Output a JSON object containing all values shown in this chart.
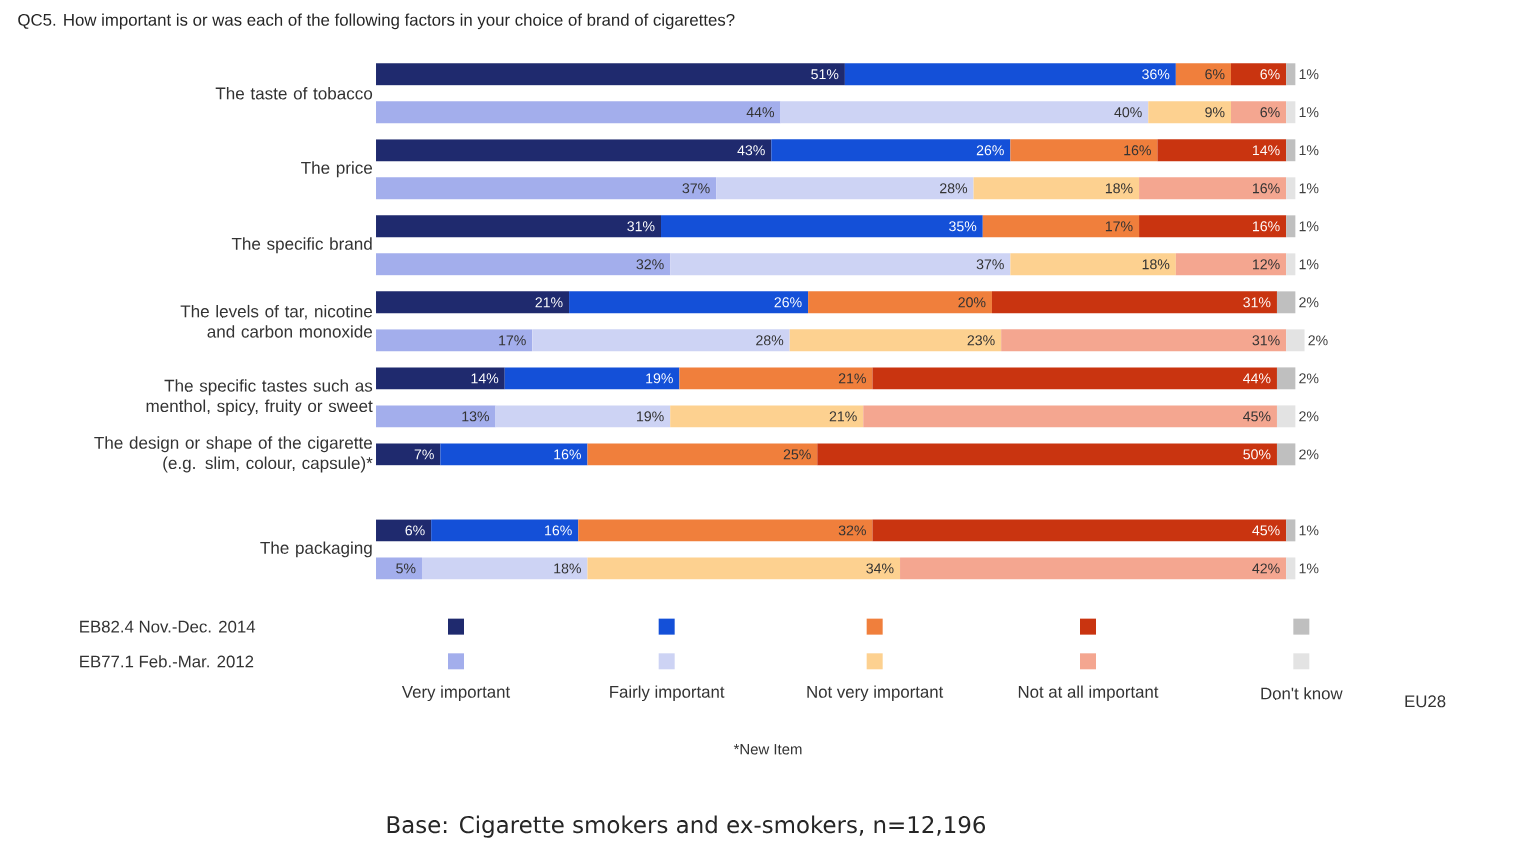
{
  "chart_data": {
    "type": "bar",
    "orientation": "horizontal",
    "stacked": true,
    "legend": "bottom",
    "title": "QC5. How important is or was each of the following factors in your choice of brand of cigarettes?",
    "categories": [
      "The taste of tobacco",
      null,
      "The price",
      null,
      "The specific brand",
      null,
      "The levels of tar, nicotine and carbon monoxide",
      null,
      "The specific tastes such as menthol, spicy, fruity or sweet",
      null,
      "The design or shape of the cigarette (e.g. slim, colour, capsule)*",
      null,
      "The packaging",
      null
    ],
    "series": [
      {
        "name": "Very important",
        "colors": [
          "#1f2a6e",
          "#a3aeec",
          "#1f2a6e",
          "#a3aeec",
          "#1f2a6e",
          "#a3aeec",
          "#1f2a6e",
          "#a3aeec",
          "#1f2a6e",
          "#a3aeec",
          "#1f2a6e",
          "#a3aeec",
          "#1f2a6e",
          "#a3aeec"
        ],
        "values": [
          51,
          44,
          43,
          37,
          31,
          32,
          21,
          17,
          14,
          13,
          7,
          null,
          6,
          5
        ],
        "value_labels": [
          "51%",
          "44%",
          "43%",
          "37%",
          "31%",
          "32%",
          "21%",
          "17%",
          "14%",
          "13%",
          "7%",
          null,
          "6%",
          "5%"
        ]
      },
      {
        "name": "Fairly important",
        "colors": [
          "#1450d8",
          "#cdd3f4",
          "#1450d8",
          "#cdd3f4",
          "#1450d8",
          "#cdd3f4",
          "#1450d8",
          "#cdd3f4",
          "#1450d8",
          "#cdd3f4",
          "#1450d8",
          "#cdd3f4",
          "#1450d8",
          "#cdd3f4"
        ],
        "values": [
          36,
          40,
          26,
          28,
          35,
          37,
          26,
          28,
          19,
          19,
          16,
          null,
          16,
          18
        ],
        "value_labels": [
          "36%",
          "40%",
          "26%",
          "28%",
          "35%",
          "37%",
          "26%",
          "28%",
          "19%",
          "19%",
          "16%",
          null,
          "16%",
          "18%"
        ]
      },
      {
        "name": "Not very important",
        "colors": [
          "#f07f3c",
          "#fdd190",
          "#f07f3c",
          "#fdd190",
          "#f07f3c",
          "#fdd190",
          "#f07f3c",
          "#fdd190",
          "#f07f3c",
          "#fdd190",
          "#f07f3c",
          "#fdd190",
          "#f07f3c",
          "#fdd190"
        ],
        "values": [
          6,
          9,
          16,
          18,
          17,
          18,
          20,
          23,
          21,
          21,
          25,
          null,
          32,
          34
        ],
        "value_labels": [
          "6%",
          "9%",
          "16%",
          "18%",
          "17%",
          "18%",
          "20%",
          "23%",
          "21%",
          "21%",
          "25%",
          null,
          "32%",
          "34%"
        ]
      },
      {
        "name": "Not at all important",
        "colors": [
          "#c93410",
          "#f4a690",
          "#c93410",
          "#f4a690",
          "#c93410",
          "#f4a690",
          "#c93410",
          "#f4a690",
          "#c93410",
          "#f4a690",
          "#c93410",
          "#f4a690",
          "#c93410",
          "#f4a690"
        ],
        "values": [
          6,
          6,
          14,
          16,
          16,
          12,
          31,
          31,
          44,
          45,
          50,
          null,
          45,
          42
        ],
        "value_labels": [
          "6%",
          "6%",
          "14%",
          "16%",
          "16%",
          "12%",
          "31%",
          "31%",
          "44%",
          "45%",
          "50%",
          null,
          "45%",
          "42%"
        ]
      },
      {
        "name": "Don't know",
        "colors": [
          "#bfbfbf",
          "#e3e3e3",
          "#bfbfbf",
          "#e3e3e3",
          "#bfbfbf",
          "#e3e3e3",
          "#bfbfbf",
          "#e3e3e3",
          "#bfbfbf",
          "#e3e3e3",
          "#bfbfbf",
          "#e3e3e3",
          "#bfbfbf",
          "#e3e3e3"
        ],
        "values": [
          1,
          1,
          1,
          1,
          1,
          1,
          2,
          2,
          2,
          2,
          2,
          null,
          1,
          1
        ],
        "value_labels": [
          "1%",
          "1%",
          "1%",
          "1%",
          "1%",
          "1%",
          "2%",
          "2%",
          "2%",
          "2%",
          "2%",
          null,
          "1%",
          "1%"
        ]
      }
    ],
    "annotations": [
      "EB82.4 Nov.-Dec. 2014",
      "EB77.1 Feb.-Mar. 2012",
      "*New Item",
      "EU28",
      "Base: Cigarette smokers and ex-smokers, n=12,196"
    ]
  }
}
